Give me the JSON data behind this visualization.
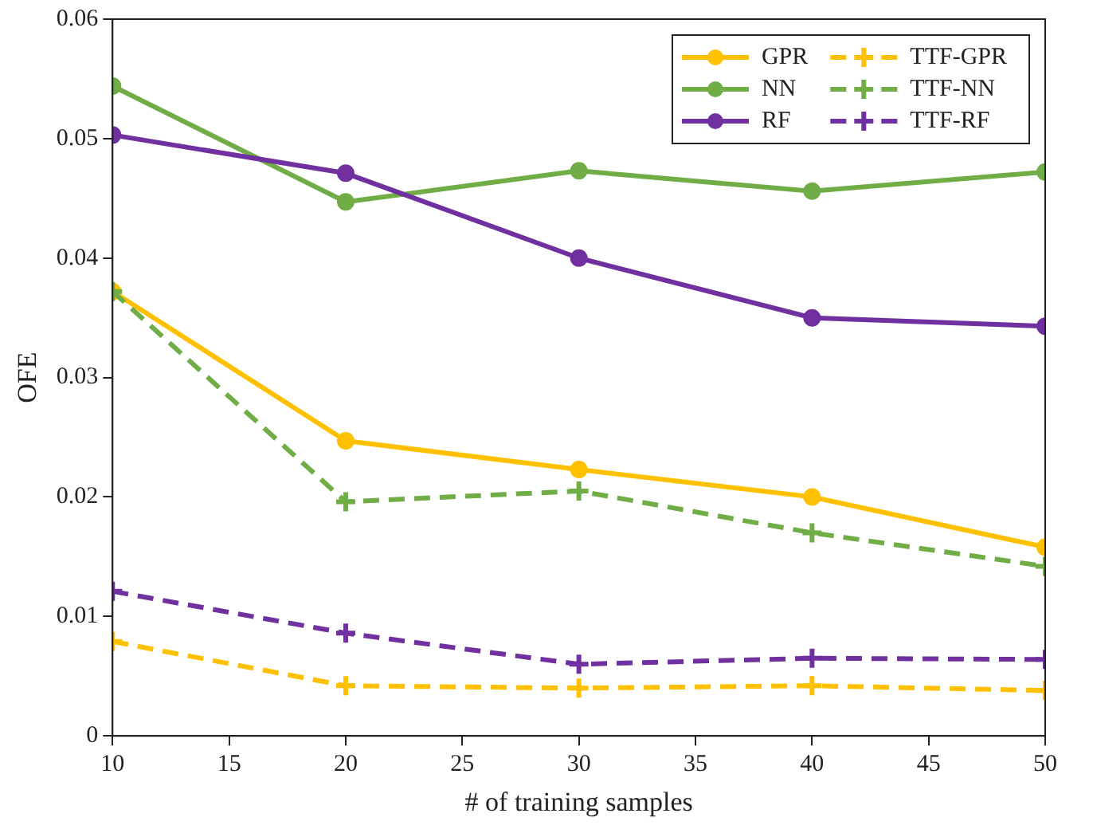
{
  "chart_data": {
    "type": "line",
    "xlabel": "# of training samples",
    "ylabel": "OFE",
    "x": [
      10,
      20,
      30,
      40,
      50
    ],
    "xlim": [
      10,
      50
    ],
    "xticks": [
      10,
      15,
      20,
      25,
      30,
      35,
      40,
      45,
      50
    ],
    "ylim": [
      0,
      0.06
    ],
    "yticks": [
      0,
      0.01,
      0.02,
      0.03,
      0.04,
      0.05,
      0.06
    ],
    "grid": false,
    "legend": "top right",
    "series": [
      {
        "name": "GPR",
        "color": "#ffc000",
        "marker": "circle",
        "line_style": "solid",
        "values": [
          0.0372,
          0.0247,
          0.0223,
          0.02,
          0.0158
        ]
      },
      {
        "name": "NN",
        "color": "#70ad47",
        "marker": "circle",
        "line_style": "solid",
        "values": [
          0.0544,
          0.0447,
          0.0473,
          0.0456,
          0.0472
        ]
      },
      {
        "name": "RF",
        "color": "#7030a0",
        "marker": "circle",
        "line_style": "solid",
        "values": [
          0.0503,
          0.0471,
          0.04,
          0.035,
          0.0343
        ]
      },
      {
        "name": "TTF-GPR",
        "color": "#ffc000",
        "marker": "cross",
        "line_style": "dashed",
        "values": [
          0.0079,
          0.0042,
          0.004,
          0.0042,
          0.0038
        ]
      },
      {
        "name": "TTF-NN",
        "color": "#70ad47",
        "marker": "cross",
        "line_style": "dashed",
        "values": [
          0.0372,
          0.0196,
          0.0205,
          0.017,
          0.0142
        ]
      },
      {
        "name": "TTF-RF",
        "color": "#7030a0",
        "marker": "cross",
        "line_style": "dashed",
        "values": [
          0.0121,
          0.0086,
          0.006,
          0.0065,
          0.0064
        ]
      }
    ]
  }
}
